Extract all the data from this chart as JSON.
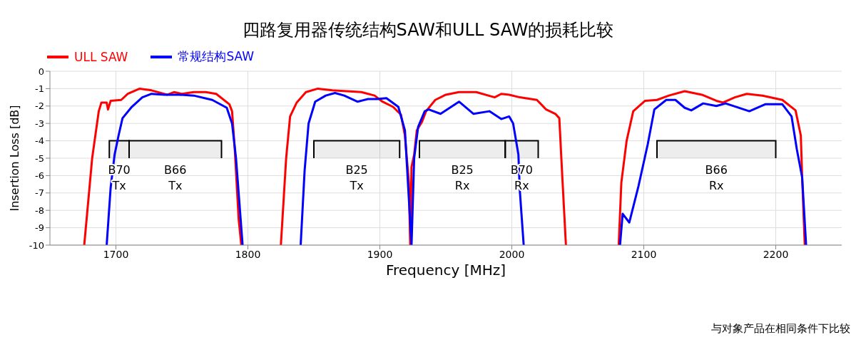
{
  "chart_data": {
    "type": "line",
    "title": "四路复用器传统结构SAW和ULL SAW的损耗比较",
    "xlabel": "Frequency [MHz]",
    "ylabel": "Insertion Loss [dB]",
    "xlim": [
      1650,
      2250
    ],
    "xticks": [
      1700,
      1800,
      1900,
      2000,
      2100,
      2200
    ],
    "ylim": [
      -10,
      0
    ],
    "yticks": [
      0,
      -1,
      -2,
      -3,
      -4,
      -5,
      -6,
      -7,
      -8,
      -9,
      -10
    ],
    "grid": true,
    "legend": "top left",
    "marker": "none",
    "line_style": "solid",
    "series": [
      {
        "name": "ULL SAW",
        "color": "#ff0000",
        "x": [
          1676,
          1682,
          1687,
          1689,
          1693,
          1694,
          1696,
          1704,
          1709,
          1718,
          1727,
          1739,
          1744,
          1750,
          1759,
          1768,
          1776,
          1786,
          1788,
          1790,
          1793,
          1795,
          1810,
          1825,
          1829,
          1832,
          1837,
          1844,
          1853,
          1864,
          1875,
          1886,
          1896,
          1902,
          1910,
          1916,
          1919,
          1922,
          1923,
          1924,
          1926,
          1928,
          1932,
          1935,
          1942,
          1950,
          1960,
          1973,
          1987,
          1992,
          1998,
          2006,
          2019,
          2026,
          2033,
          2036,
          2038,
          2041,
          2060,
          2081,
          2083,
          2087,
          2092,
          2101,
          2110,
          2119,
          2131,
          2144,
          2155,
          2160,
          2169,
          2178,
          2190,
          2205,
          2215,
          2219,
          2220,
          2222
        ],
        "values": [
          -10,
          -5.0,
          -2.3,
          -1.8,
          -1.8,
          -2.2,
          -1.7,
          -1.65,
          -1.3,
          -1.0,
          -1.1,
          -1.35,
          -1.2,
          -1.3,
          -1.2,
          -1.2,
          -1.3,
          -1.9,
          -2.3,
          -4.4,
          -8.5,
          -10,
          null,
          -10,
          -5.0,
          -2.6,
          -1.8,
          -1.2,
          -1.0,
          -1.1,
          -1.15,
          -1.2,
          -1.4,
          -1.75,
          -2.05,
          -2.5,
          -3.7,
          -6.4,
          -10,
          -5.5,
          -4.8,
          -3.4,
          -2.9,
          -2.3,
          -1.65,
          -1.35,
          -1.2,
          -1.2,
          -1.5,
          -1.3,
          -1.35,
          -1.5,
          -1.65,
          -2.2,
          -2.45,
          -2.7,
          -5.7,
          -10,
          null,
          -10,
          -6.4,
          -4.0,
          -2.3,
          -1.7,
          -1.65,
          -1.4,
          -1.15,
          -1.35,
          -1.7,
          -1.8,
          -1.5,
          -1.3,
          -1.4,
          -1.65,
          -2.25,
          -3.7,
          -6.1,
          -10
        ]
      },
      {
        "name": "常规结构SAW",
        "color": "#0000ff",
        "x": [
          1693,
          1696,
          1699,
          1702,
          1705,
          1712,
          1720,
          1727,
          1737,
          1748,
          1759,
          1773,
          1784,
          1788,
          1791,
          1796,
          1815,
          1840,
          1843,
          1846,
          1851,
          1859,
          1866,
          1873,
          1883,
          1891,
          1898,
          1905,
          1914,
          1919,
          1924,
          1926,
          1929,
          1934,
          1937,
          1946,
          1960,
          1971,
          1983,
          1992,
          1998,
          2001,
          2005,
          2006,
          2009,
          2050,
          2082,
          2084,
          2089,
          2096,
          2103,
          2108,
          2117,
          2124,
          2131,
          2136,
          2145,
          2155,
          2162,
          2180,
          2192,
          2205,
          2212,
          2216,
          2220,
          2223
        ],
        "values": [
          -10,
          -6.7,
          -4.8,
          -3.7,
          -2.7,
          -2.05,
          -1.5,
          -1.3,
          -1.35,
          -1.35,
          -1.4,
          -1.65,
          -2.1,
          -3.0,
          -5.0,
          -10,
          null,
          -10,
          -5.7,
          -3.0,
          -1.75,
          -1.4,
          -1.25,
          -1.4,
          -1.75,
          -1.6,
          -1.6,
          -1.55,
          -2.05,
          -3.4,
          -10,
          -5.0,
          -3.2,
          -2.3,
          -2.2,
          -2.45,
          -1.75,
          -2.45,
          -2.3,
          -2.75,
          -2.6,
          -3.0,
          -4.8,
          -6.8,
          -10,
          null,
          -10,
          -8.2,
          -8.7,
          -6.6,
          -4.2,
          -2.2,
          -1.65,
          -1.65,
          -2.1,
          -2.25,
          -1.85,
          -2.0,
          -1.85,
          -2.3,
          -1.9,
          -1.9,
          -2.6,
          -4.5,
          -6.1,
          -10
        ]
      }
    ],
    "bands": [
      {
        "axis": "x",
        "from": 1695,
        "to": 1710,
        "label": "B70 Tx",
        "color": "#000000"
      },
      {
        "axis": "x",
        "from": 1710,
        "to": 1780,
        "label": "B66 Tx",
        "color": "#000000"
      },
      {
        "axis": "x",
        "from": 1850,
        "to": 1915,
        "label": "B25 Tx",
        "color": "#000000"
      },
      {
        "axis": "x",
        "from": 1930,
        "to": 1995,
        "label": "B25 Rx",
        "color": "#000000"
      },
      {
        "axis": "x",
        "from": 1995,
        "to": 2020,
        "label": "B70 Rx",
        "color": "#000000"
      },
      {
        "axis": "x",
        "from": 2110,
        "to": 2200,
        "label": "B66 Rx",
        "color": "#000000"
      }
    ],
    "annotations": [
      "与对象产品在相同条件下比较"
    ]
  }
}
